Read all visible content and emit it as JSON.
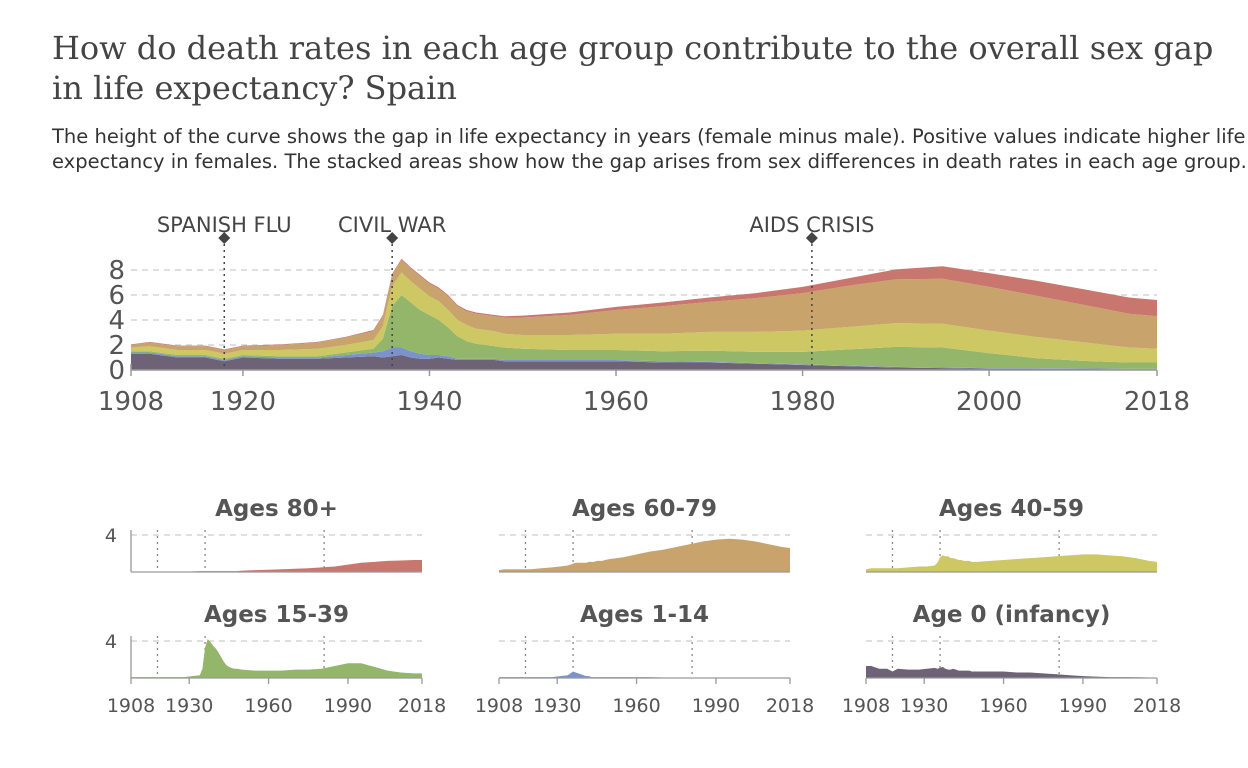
{
  "title": "How do death rates in each age group contribute to the overall sex gap in life expectancy? Spain",
  "subtitle": "The height of the curve shows the gap in life expectancy in years (female minus male). Positive values indicate higher life expectancy in females. The stacked areas show how the gap arises from sex differences in death rates in each age group.",
  "colors": {
    "age0": "#6e6276",
    "age1_14": "#7b93cc",
    "age15_39": "#93b66a",
    "age40_59": "#cdc764",
    "age60_79": "#c9a36c",
    "age80": "#c9776e",
    "grid": "#cccccc",
    "axis": "#999999"
  },
  "chart_data": [
    {
      "type": "area",
      "stacked": true,
      "xlim": [
        1908,
        2018
      ],
      "ylim": [
        0,
        8
      ],
      "yticks": [
        "0",
        "2",
        "4",
        "6",
        "8"
      ],
      "xticks": [
        "1908",
        "1920",
        "1940",
        "1960",
        "1980",
        "2000",
        "2018"
      ],
      "grid": true,
      "annotations": [
        {
          "x": 1918,
          "label": "SPANISH FLU"
        },
        {
          "x": 1936,
          "label": "CIVIL WAR"
        },
        {
          "x": 1981,
          "label": "AIDS CRISIS"
        }
      ],
      "x": [
        1908,
        1910,
        1913,
        1916,
        1918,
        1920,
        1924,
        1928,
        1931,
        1934,
        1935,
        1936,
        1937,
        1938,
        1939,
        1940,
        1941,
        1942,
        1943,
        1944,
        1945,
        1946,
        1947,
        1948,
        1950,
        1955,
        1960,
        1965,
        1970,
        1975,
        1980,
        1985,
        1990,
        1995,
        2000,
        2005,
        2010,
        2015,
        2018
      ],
      "series": [
        {
          "key": "age0",
          "values": [
            1.3,
            1.3,
            1.0,
            1.0,
            0.7,
            1.0,
            0.9,
            0.9,
            1.0,
            1.1,
            1.0,
            1.1,
            1.2,
            1.0,
            0.9,
            0.9,
            1.0,
            0.9,
            0.8,
            0.8,
            0.8,
            0.8,
            0.8,
            0.7,
            0.7,
            0.7,
            0.7,
            0.6,
            0.6,
            0.5,
            0.4,
            0.3,
            0.2,
            0.15,
            0.1,
            0.1,
            0.08,
            0.05,
            0.05
          ]
        },
        {
          "key": "age1_14",
          "values": [
            0.1,
            0.1,
            0.1,
            0.1,
            0.1,
            0.1,
            0.1,
            0.1,
            0.2,
            0.3,
            0.5,
            0.7,
            0.6,
            0.5,
            0.4,
            0.3,
            0.2,
            0.2,
            0.1,
            0.1,
            0.1,
            0.1,
            0.1,
            0.1,
            0.1,
            0.1,
            0.1,
            0.1,
            0.05,
            0.05,
            0.05,
            0.05,
            0.05,
            0.05,
            0.05,
            0.05,
            0.05,
            0.05,
            0.05
          ]
        },
        {
          "key": "age15_39",
          "values": [
            0.1,
            0.1,
            0.1,
            0.1,
            0.1,
            0.1,
            0.1,
            0.1,
            0.2,
            0.3,
            1.0,
            3.3,
            4.2,
            3.9,
            3.5,
            3.2,
            2.8,
            2.3,
            1.8,
            1.4,
            1.2,
            1.1,
            1.0,
            1.0,
            0.9,
            0.8,
            0.8,
            0.8,
            0.9,
            0.9,
            1.0,
            1.3,
            1.6,
            1.6,
            1.2,
            0.8,
            0.6,
            0.5,
            0.5
          ]
        },
        {
          "key": "age40_59",
          "values": [
            0.3,
            0.4,
            0.4,
            0.4,
            0.4,
            0.4,
            0.5,
            0.6,
            0.6,
            0.7,
            1.0,
            1.6,
            1.8,
            1.7,
            1.7,
            1.5,
            1.5,
            1.4,
            1.3,
            1.3,
            1.2,
            1.2,
            1.2,
            1.1,
            1.1,
            1.2,
            1.3,
            1.4,
            1.5,
            1.6,
            1.7,
            1.8,
            1.9,
            1.9,
            1.8,
            1.7,
            1.5,
            1.2,
            1.1
          ]
        },
        {
          "key": "age60_79",
          "values": [
            0.2,
            0.3,
            0.3,
            0.3,
            0.3,
            0.3,
            0.4,
            0.5,
            0.6,
            0.7,
            0.8,
            0.9,
            1.0,
            1.0,
            1.0,
            1.0,
            1.0,
            1.1,
            1.1,
            1.1,
            1.2,
            1.2,
            1.2,
            1.3,
            1.4,
            1.6,
            1.9,
            2.2,
            2.4,
            2.7,
            3.0,
            3.3,
            3.5,
            3.6,
            3.5,
            3.3,
            3.0,
            2.7,
            2.6
          ]
        },
        {
          "key": "age80",
          "values": [
            0.05,
            0.05,
            0.05,
            0.05,
            0.05,
            0.05,
            0.05,
            0.05,
            0.05,
            0.1,
            0.1,
            0.1,
            0.1,
            0.1,
            0.1,
            0.1,
            0.1,
            0.1,
            0.1,
            0.1,
            0.1,
            0.1,
            0.1,
            0.1,
            0.15,
            0.2,
            0.25,
            0.3,
            0.35,
            0.4,
            0.5,
            0.6,
            0.8,
            1.0,
            1.1,
            1.2,
            1.25,
            1.3,
            1.3
          ]
        }
      ]
    },
    {
      "type": "area",
      "small_multiples": true,
      "xlim": [
        1908,
        2018
      ],
      "ytick": "4",
      "xticks": [
        "1908",
        "1930",
        "1960",
        "1990",
        "2018"
      ],
      "panels": [
        {
          "key": "age80",
          "title": "Ages 80+"
        },
        {
          "key": "age60_79",
          "title": "Ages 60-79"
        },
        {
          "key": "age40_59",
          "title": "Ages 40-59"
        },
        {
          "key": "age15_39",
          "title": "Ages 15-39"
        },
        {
          "key": "age1_14",
          "title": "Ages 1-14"
        },
        {
          "key": "age0",
          "title": "Age 0 (infancy)"
        }
      ]
    }
  ]
}
